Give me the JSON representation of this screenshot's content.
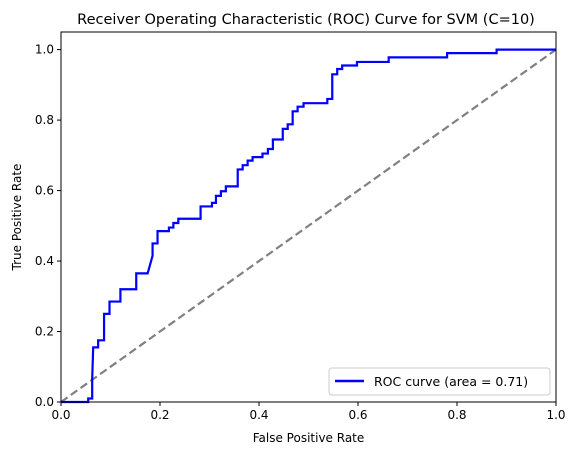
{
  "chart_data": {
    "type": "line",
    "title": "Receiver Operating Characteristic (ROC) Curve for SVM (C=10)",
    "xlabel": "False Positive Rate",
    "ylabel": "True Positive Rate",
    "xlim": [
      0.0,
      1.0
    ],
    "ylim": [
      0.0,
      1.05
    ],
    "xticks": [
      0.0,
      0.2,
      0.4,
      0.6,
      0.8,
      1.0
    ],
    "xtick_labels": [
      "0.0",
      "0.2",
      "0.4",
      "0.6",
      "0.8",
      "1.0"
    ],
    "yticks": [
      0.0,
      0.2,
      0.4,
      0.6,
      0.8,
      1.0
    ],
    "ytick_labels": [
      "0.0",
      "0.2",
      "0.4",
      "0.6",
      "0.8",
      "1.0"
    ],
    "grid": false,
    "legend_position": "lower right",
    "series": [
      {
        "name": "ROC curve (area = 0.71)",
        "color": "#0000ff",
        "style": "solid",
        "points": [
          [
            0.0,
            0.0
          ],
          [
            0.055,
            0.0
          ],
          [
            0.055,
            0.01
          ],
          [
            0.063,
            0.01
          ],
          [
            0.063,
            0.065
          ],
          [
            0.065,
            0.155
          ],
          [
            0.075,
            0.155
          ],
          [
            0.075,
            0.175
          ],
          [
            0.087,
            0.175
          ],
          [
            0.087,
            0.25
          ],
          [
            0.098,
            0.25
          ],
          [
            0.098,
            0.285
          ],
          [
            0.12,
            0.285
          ],
          [
            0.12,
            0.32
          ],
          [
            0.152,
            0.32
          ],
          [
            0.152,
            0.365
          ],
          [
            0.175,
            0.365
          ],
          [
            0.185,
            0.415
          ],
          [
            0.185,
            0.45
          ],
          [
            0.195,
            0.45
          ],
          [
            0.195,
            0.485
          ],
          [
            0.218,
            0.485
          ],
          [
            0.218,
            0.495
          ],
          [
            0.227,
            0.495
          ],
          [
            0.227,
            0.508
          ],
          [
            0.237,
            0.508
          ],
          [
            0.237,
            0.52
          ],
          [
            0.282,
            0.52
          ],
          [
            0.282,
            0.555
          ],
          [
            0.305,
            0.555
          ],
          [
            0.305,
            0.565
          ],
          [
            0.313,
            0.565
          ],
          [
            0.313,
            0.585
          ],
          [
            0.323,
            0.585
          ],
          [
            0.323,
            0.598
          ],
          [
            0.333,
            0.598
          ],
          [
            0.333,
            0.612
          ],
          [
            0.357,
            0.612
          ],
          [
            0.357,
            0.66
          ],
          [
            0.367,
            0.66
          ],
          [
            0.367,
            0.672
          ],
          [
            0.377,
            0.672
          ],
          [
            0.377,
            0.685
          ],
          [
            0.387,
            0.685
          ],
          [
            0.387,
            0.695
          ],
          [
            0.407,
            0.695
          ],
          [
            0.407,
            0.705
          ],
          [
            0.418,
            0.705
          ],
          [
            0.418,
            0.718
          ],
          [
            0.428,
            0.718
          ],
          [
            0.428,
            0.745
          ],
          [
            0.448,
            0.745
          ],
          [
            0.448,
            0.775
          ],
          [
            0.458,
            0.775
          ],
          [
            0.458,
            0.788
          ],
          [
            0.468,
            0.788
          ],
          [
            0.468,
            0.825
          ],
          [
            0.478,
            0.825
          ],
          [
            0.478,
            0.838
          ],
          [
            0.49,
            0.838
          ],
          [
            0.49,
            0.848
          ],
          [
            0.538,
            0.848
          ],
          [
            0.538,
            0.86
          ],
          [
            0.548,
            0.86
          ],
          [
            0.548,
            0.93
          ],
          [
            0.558,
            0.93
          ],
          [
            0.558,
            0.945
          ],
          [
            0.568,
            0.945
          ],
          [
            0.568,
            0.955
          ],
          [
            0.598,
            0.955
          ],
          [
            0.598,
            0.965
          ],
          [
            0.662,
            0.965
          ],
          [
            0.662,
            0.978
          ],
          [
            0.78,
            0.978
          ],
          [
            0.78,
            0.99
          ],
          [
            0.88,
            0.99
          ],
          [
            0.88,
            1.0
          ],
          [
            1.0,
            1.0
          ]
        ]
      },
      {
        "name": "",
        "color": "#808080",
        "style": "dashed",
        "points": [
          [
            0.0,
            0.0
          ],
          [
            1.0,
            1.0
          ]
        ]
      }
    ]
  }
}
